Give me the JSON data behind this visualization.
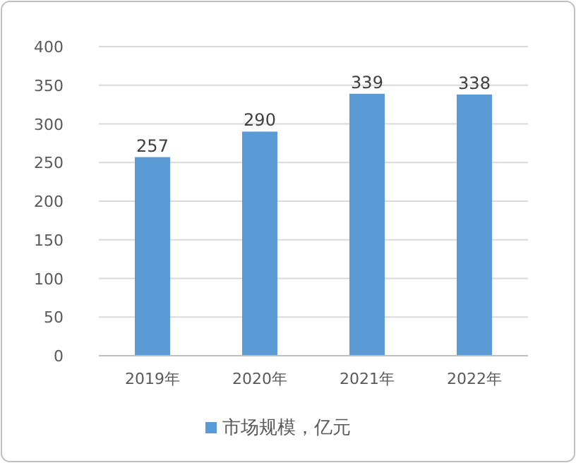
{
  "chart_data": {
    "type": "bar",
    "categories": [
      "2019年",
      "2020年",
      "2021年",
      "2022年"
    ],
    "series": [
      {
        "name": "市场规模，亿元",
        "color": "#5b9bd5",
        "values": [
          257,
          290,
          339,
          338
        ]
      }
    ],
    "ylim": [
      0,
      400
    ],
    "yticks": [
      0,
      50,
      100,
      150,
      200,
      250,
      300,
      350,
      400
    ],
    "grid": "y",
    "legend": "bottom",
    "data_labels": true
  }
}
